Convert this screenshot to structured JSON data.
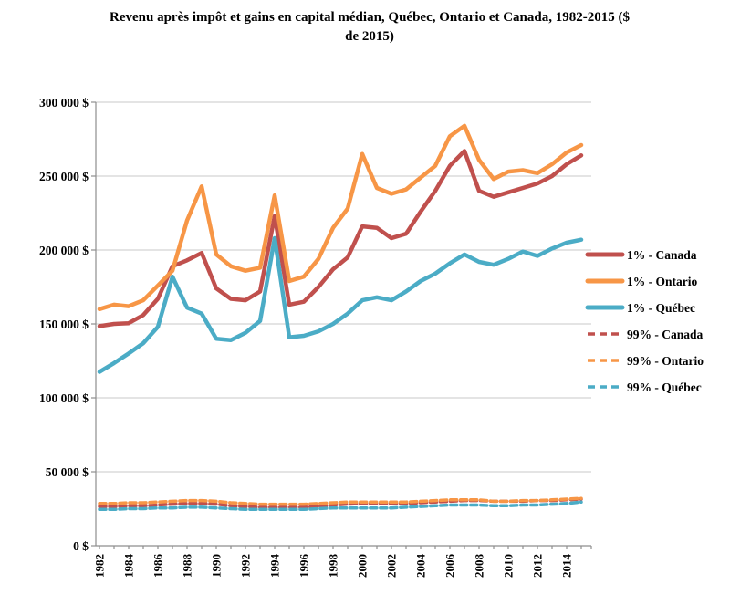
{
  "chart_data": {
    "type": "line",
    "title": "Revenu après impôt et gains en capital médian, Québec, Ontario et Canada, 1982-2015 ($ de 2015)",
    "title_lines": [
      "Revenu après impôt et gains en capital médian, Québec, Ontario et Canada, 1982-2015 ($",
      "de 2015)"
    ],
    "x": [
      1982,
      1983,
      1984,
      1985,
      1986,
      1987,
      1988,
      1989,
      1990,
      1991,
      1992,
      1993,
      1994,
      1995,
      1996,
      1997,
      1998,
      1999,
      2000,
      2001,
      2002,
      2003,
      2004,
      2005,
      2006,
      2007,
      2008,
      2009,
      2010,
      2011,
      2012,
      2013,
      2014,
      2015
    ],
    "x_tick_labels": [
      "1982",
      "1984",
      "1986",
      "1988",
      "1990",
      "1992",
      "1994",
      "1996",
      "1998",
      "2000",
      "2002",
      "2004",
      "2006",
      "2008",
      "2010",
      "2012",
      "2014"
    ],
    "x_label_every": 2,
    "grid": true,
    "legend_position": "right",
    "y_axis": {
      "min": 0,
      "max": 300000,
      "ticks": [
        {
          "value": 0,
          "label": "0 $"
        },
        {
          "value": 50000,
          "label": "50 000 $"
        },
        {
          "value": 100000,
          "label": "100 000 $"
        },
        {
          "value": 150000,
          "label": "150 000 $"
        },
        {
          "value": 200000,
          "label": "200 000 $"
        },
        {
          "value": 250000,
          "label": "250 000 $"
        },
        {
          "value": 300000,
          "label": "300 000 $"
        }
      ]
    },
    "series": [
      {
        "name": "1% - Canada",
        "color": "#C0504D",
        "style": "solid",
        "values": [
          148500,
          150000,
          150500,
          156000,
          167000,
          189000,
          193000,
          198000,
          174000,
          167000,
          166000,
          172000,
          223000,
          163000,
          165000,
          175000,
          187000,
          195000,
          216000,
          215000,
          208000,
          211000,
          226000,
          240000,
          257000,
          267000,
          240000,
          236000,
          239000,
          242000,
          245000,
          250000,
          258000,
          264000
        ]
      },
      {
        "name": "1% - Ontario",
        "color": "#F79646",
        "style": "solid",
        "values": [
          160000,
          163000,
          162000,
          166000,
          176000,
          186000,
          220000,
          243000,
          197000,
          189000,
          186000,
          188000,
          237000,
          179000,
          182000,
          194000,
          215000,
          228000,
          265000,
          242000,
          238000,
          241000,
          249000,
          257000,
          277000,
          284000,
          261000,
          248000,
          253000,
          254000,
          252000,
          258000,
          266000,
          271000
        ]
      },
      {
        "name": "1% - Québec",
        "color": "#4BACC6",
        "style": "solid",
        "values": [
          117500,
          123500,
          130000,
          137000,
          148000,
          182000,
          161000,
          157000,
          140000,
          139000,
          144000,
          152000,
          208000,
          141000,
          142000,
          145000,
          150000,
          157000,
          166000,
          168000,
          166000,
          172000,
          179000,
          184000,
          191000,
          197000,
          192000,
          190000,
          194000,
          199000,
          196000,
          201000,
          205000,
          207000
        ]
      },
      {
        "name": "99% - Canada",
        "color": "#C0504D",
        "style": "dashed",
        "values": [
          26500,
          26500,
          27000,
          27000,
          27500,
          28000,
          28500,
          28500,
          28000,
          27000,
          26500,
          26000,
          26000,
          26000,
          26000,
          26500,
          27500,
          28000,
          28500,
          28500,
          28500,
          28500,
          29000,
          29500,
          30000,
          30500,
          30500,
          30000,
          30000,
          30000,
          30500,
          30500,
          31000,
          31500
        ]
      },
      {
        "name": "99% - Ontario",
        "color": "#F79646",
        "style": "dashed",
        "values": [
          28500,
          28500,
          29000,
          29000,
          29500,
          30000,
          30500,
          30500,
          30000,
          29000,
          28500,
          28000,
          28000,
          28000,
          28000,
          28500,
          29000,
          29500,
          29500,
          29500,
          29500,
          29500,
          30000,
          30500,
          31000,
          31000,
          31000,
          30000,
          30000,
          30500,
          30500,
          31000,
          31500,
          32000
        ]
      },
      {
        "name": "99% - Québec",
        "color": "#4BACC6",
        "style": "dashed",
        "values": [
          24500,
          24500,
          25000,
          25000,
          25500,
          25500,
          26000,
          26000,
          25500,
          25000,
          24500,
          24500,
          24500,
          24500,
          24500,
          25000,
          25500,
          25500,
          25500,
          25500,
          25500,
          26000,
          26500,
          27000,
          27500,
          27500,
          27500,
          27000,
          27000,
          27500,
          27500,
          28000,
          28500,
          29500
        ]
      }
    ],
    "colors": {
      "canada": "#C0504D",
      "ontario": "#F79646",
      "quebec": "#4BACC6",
      "gridline": "#C9C9C9",
      "axis": "#8E8E8E"
    }
  }
}
